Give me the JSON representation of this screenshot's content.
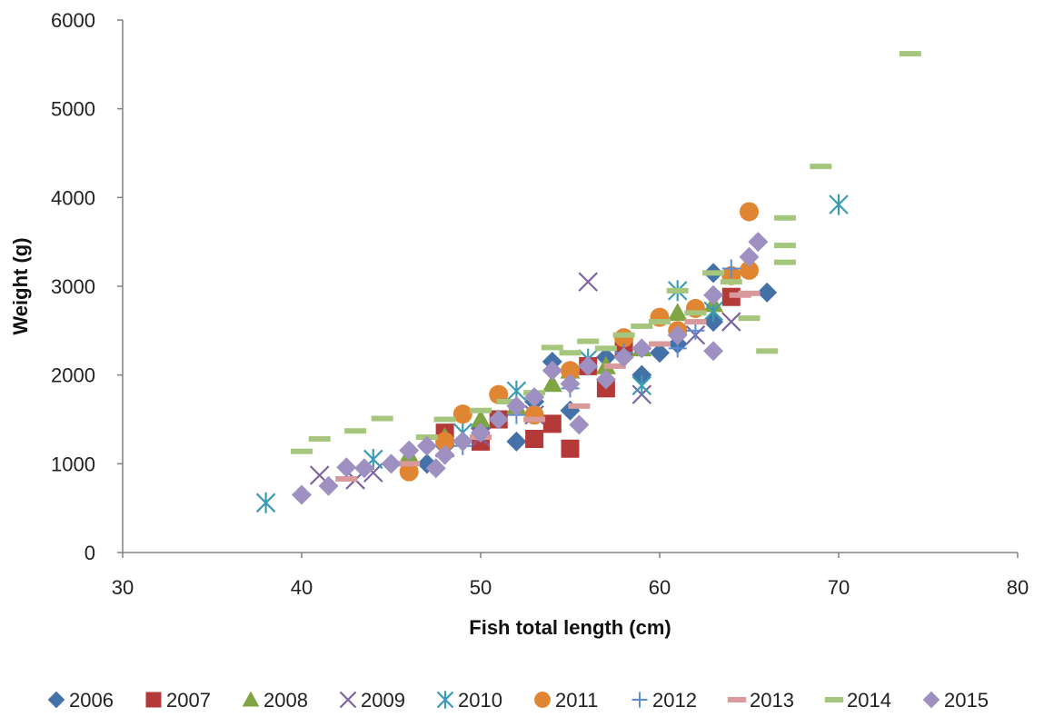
{
  "chart_data": {
    "type": "scatter",
    "title": "",
    "xlabel": "Fish total length (cm)",
    "ylabel": "Weight (g)",
    "xlim": [
      30,
      80
    ],
    "ylim": [
      0,
      6000
    ],
    "xticks": [
      30,
      40,
      50,
      60,
      70,
      80
    ],
    "yticks": [
      0,
      1000,
      2000,
      3000,
      4000,
      5000,
      6000
    ],
    "grid": false,
    "legend_position": "bottom",
    "series": [
      {
        "name": "2006",
        "marker": "diamond",
        "color": "#4472A8",
        "points": [
          [
            47,
            1000
          ],
          [
            48,
            1200
          ],
          [
            50,
            1400
          ],
          [
            52,
            1250
          ],
          [
            53,
            1700
          ],
          [
            54,
            2150
          ],
          [
            55,
            1600
          ],
          [
            57,
            2200
          ],
          [
            59,
            2000
          ],
          [
            60,
            2250
          ],
          [
            61,
            2350
          ],
          [
            63,
            2600
          ],
          [
            63,
            3150
          ],
          [
            66,
            2930
          ]
        ]
      },
      {
        "name": "2007",
        "marker": "square",
        "color": "#B43A3A",
        "points": [
          [
            48,
            1350
          ],
          [
            50,
            1250
          ],
          [
            51,
            1500
          ],
          [
            53,
            1280
          ],
          [
            54,
            1450
          ],
          [
            55,
            1170
          ],
          [
            56,
            2100
          ],
          [
            57,
            1850
          ],
          [
            58,
            2300
          ],
          [
            64,
            2880
          ]
        ]
      },
      {
        "name": "2008",
        "marker": "triangle",
        "color": "#7FA443",
        "points": [
          [
            46,
            1100
          ],
          [
            48,
            1300
          ],
          [
            50,
            1500
          ],
          [
            52,
            1650
          ],
          [
            54,
            1900
          ],
          [
            55,
            2050
          ],
          [
            57,
            2100
          ],
          [
            59,
            2300
          ],
          [
            61,
            2700
          ],
          [
            63,
            2800
          ]
        ]
      },
      {
        "name": "2009",
        "marker": "x",
        "color": "#7D64A0",
        "points": [
          [
            41,
            870
          ],
          [
            43,
            820
          ],
          [
            44,
            900
          ],
          [
            48,
            1180
          ],
          [
            50,
            1300
          ],
          [
            53,
            1550
          ],
          [
            56,
            3050
          ],
          [
            59,
            1780
          ],
          [
            62,
            2450
          ],
          [
            64,
            2600
          ]
        ]
      },
      {
        "name": "2010",
        "marker": "asterisk",
        "color": "#3C9BB4",
        "points": [
          [
            38,
            560
          ],
          [
            44,
            1050
          ],
          [
            49,
            1350
          ],
          [
            52,
            1820
          ],
          [
            56,
            2180
          ],
          [
            59,
            1880
          ],
          [
            61,
            2950
          ],
          [
            63,
            2720
          ],
          [
            70,
            3920
          ]
        ]
      },
      {
        "name": "2011",
        "marker": "circle",
        "color": "#E08532",
        "points": [
          [
            46,
            910
          ],
          [
            48,
            1250
          ],
          [
            49,
            1560
          ],
          [
            51,
            1780
          ],
          [
            53,
            1550
          ],
          [
            55,
            2050
          ],
          [
            58,
            2420
          ],
          [
            60,
            2650
          ],
          [
            61,
            2500
          ],
          [
            62,
            2750
          ],
          [
            64,
            3120
          ],
          [
            65,
            3180
          ],
          [
            65,
            3840
          ]
        ]
      },
      {
        "name": "2012",
        "marker": "plus",
        "color": "#5B8BD0",
        "points": [
          [
            45,
            1000
          ],
          [
            49,
            1200
          ],
          [
            52,
            1550
          ],
          [
            55,
            1850
          ],
          [
            58,
            2250
          ],
          [
            61,
            2300
          ],
          [
            62,
            2500
          ],
          [
            64,
            3200
          ]
        ]
      },
      {
        "name": "2013",
        "marker": "dash",
        "color": "#D89A9A",
        "points": [
          [
            42.5,
            830
          ],
          [
            46,
            1000
          ],
          [
            50,
            1300
          ],
          [
            53,
            1500
          ],
          [
            55.5,
            1650
          ],
          [
            57.5,
            2100
          ],
          [
            60,
            2350
          ],
          [
            62,
            2600
          ],
          [
            64.5,
            2900
          ],
          [
            65,
            2920
          ]
        ]
      },
      {
        "name": "2014",
        "marker": "dash",
        "color": "#A6C67E",
        "points": [
          [
            40,
            1140
          ],
          [
            41,
            1280
          ],
          [
            43,
            1370
          ],
          [
            44.5,
            1510
          ],
          [
            47,
            1300
          ],
          [
            48,
            1500
          ],
          [
            50,
            1600
          ],
          [
            51.5,
            1700
          ],
          [
            53,
            1800
          ],
          [
            54,
            2310
          ],
          [
            55,
            2250
          ],
          [
            56,
            2380
          ],
          [
            57,
            2300
          ],
          [
            58,
            2450
          ],
          [
            59,
            2550
          ],
          [
            60,
            2600
          ],
          [
            61,
            2950
          ],
          [
            62,
            2700
          ],
          [
            63,
            3150
          ],
          [
            64,
            3050
          ],
          [
            65,
            2640
          ],
          [
            66,
            2270
          ],
          [
            67,
            3270
          ],
          [
            67,
            3460
          ],
          [
            67,
            3770
          ],
          [
            69,
            4350
          ],
          [
            74,
            5620
          ]
        ]
      },
      {
        "name": "2015",
        "marker": "diamond",
        "color": "#9F90C2",
        "points": [
          [
            40,
            650
          ],
          [
            41.5,
            750
          ],
          [
            42.5,
            960
          ],
          [
            43.5,
            950
          ],
          [
            45,
            1000
          ],
          [
            46,
            1150
          ],
          [
            47,
            1200
          ],
          [
            47.5,
            950
          ],
          [
            48,
            1100
          ],
          [
            49,
            1250
          ],
          [
            50,
            1350
          ],
          [
            51,
            1500
          ],
          [
            52,
            1650
          ],
          [
            53,
            1750
          ],
          [
            54,
            2050
          ],
          [
            55,
            1900
          ],
          [
            55.5,
            1440
          ],
          [
            56,
            2100
          ],
          [
            57,
            1950
          ],
          [
            58,
            2200
          ],
          [
            59,
            2300
          ],
          [
            61,
            2450
          ],
          [
            63,
            2270
          ],
          [
            63,
            2900
          ],
          [
            65,
            3330
          ],
          [
            65.5,
            3500
          ]
        ]
      }
    ]
  }
}
